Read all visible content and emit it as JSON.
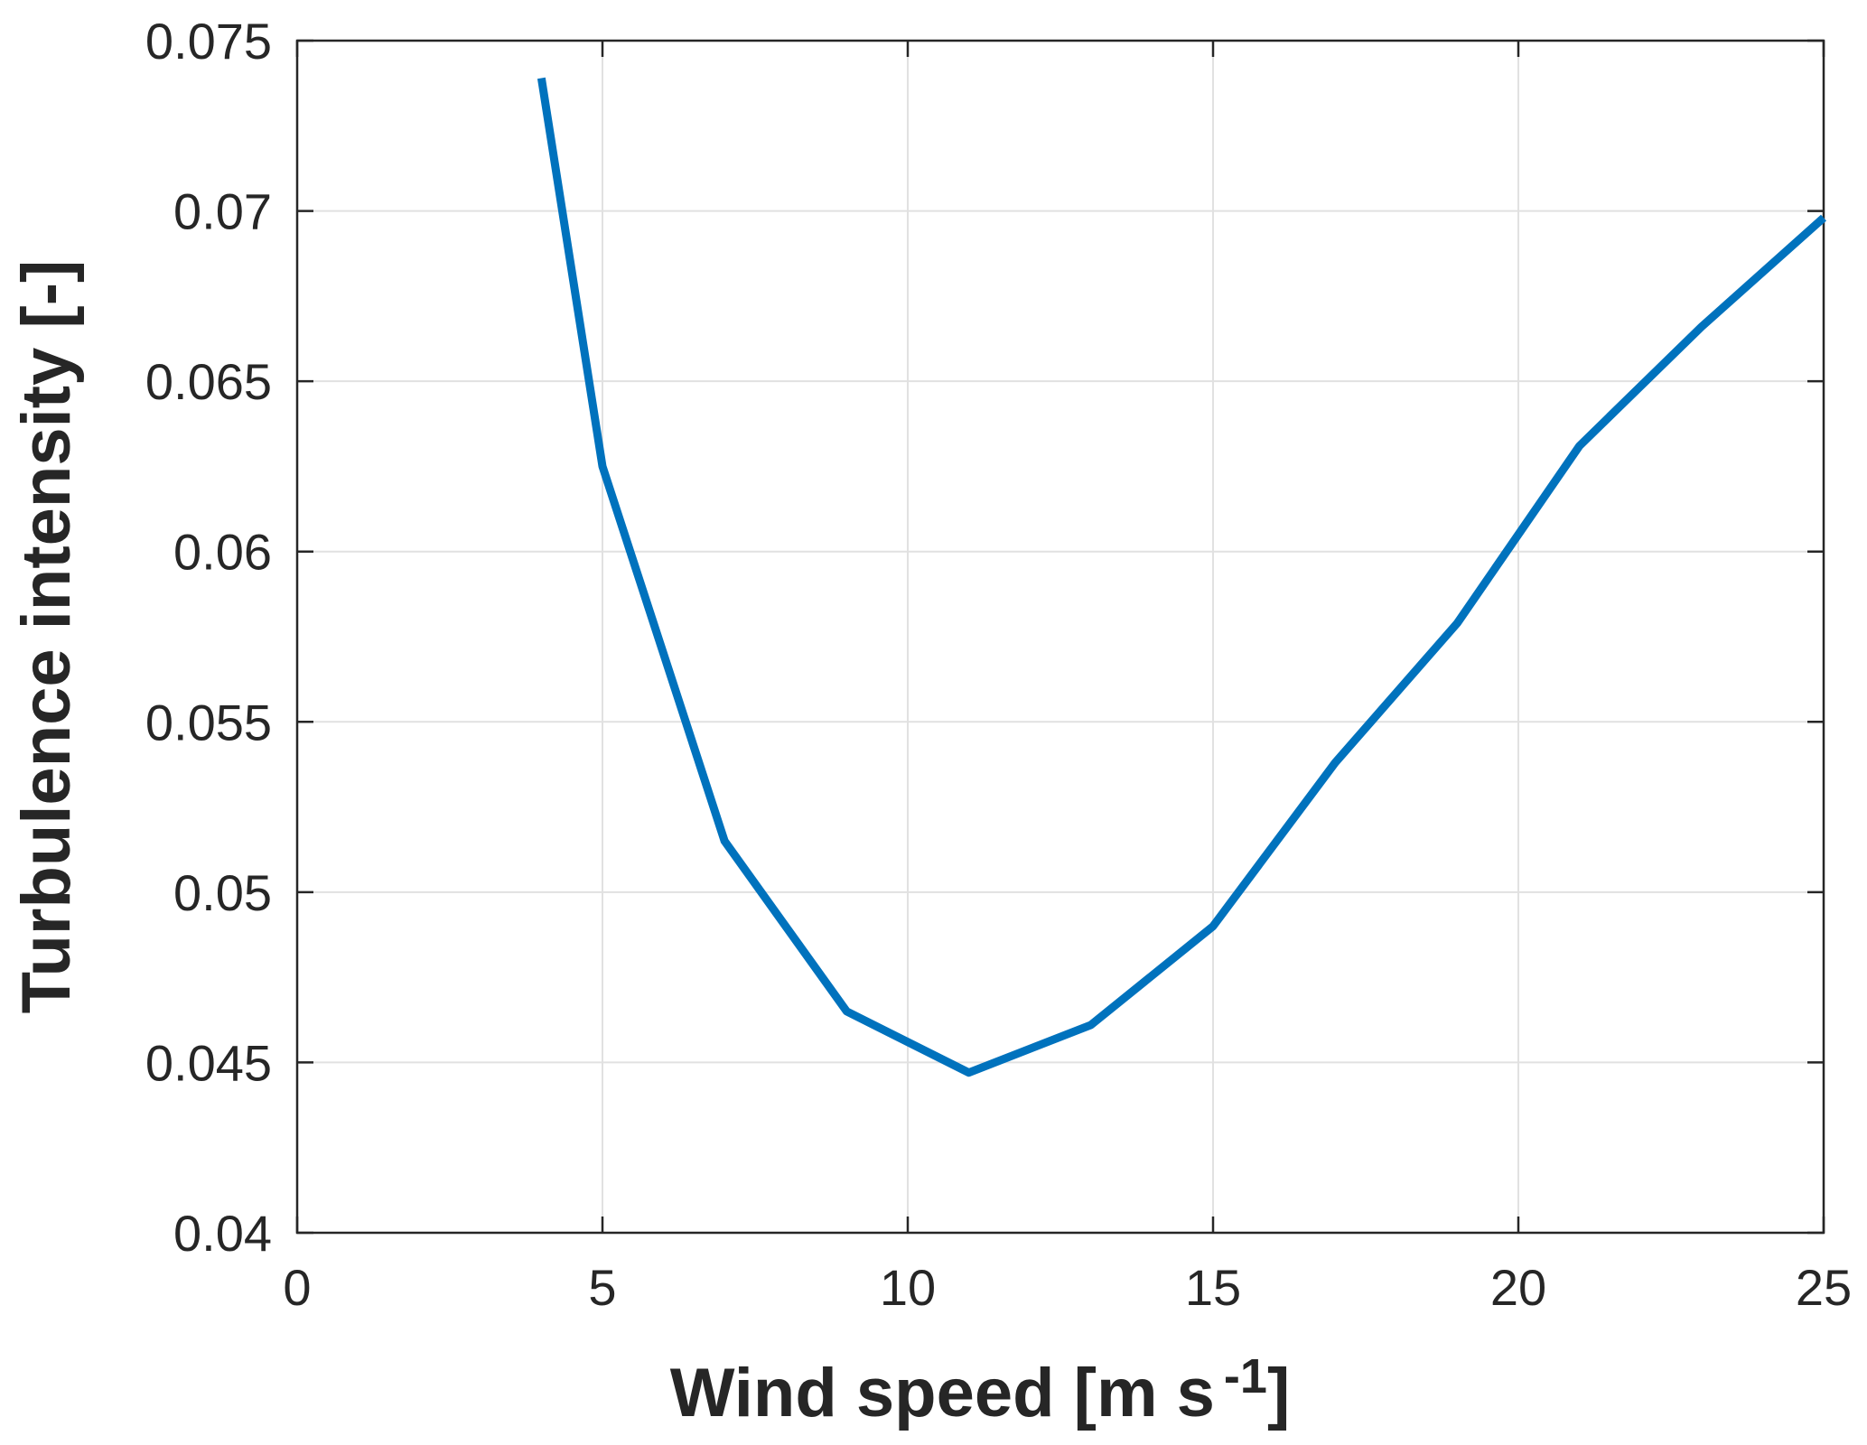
{
  "chart_data": {
    "type": "line",
    "xlabel": "Wind speed [m s",
    "xlabel_sup": "-1",
    "xlabel_end": "]",
    "ylabel": "Turbulence intensity [-]",
    "xlim": [
      0,
      25
    ],
    "ylim": [
      0.04,
      0.075
    ],
    "xticks": [
      "0",
      "5",
      "10",
      "15",
      "20",
      "25"
    ],
    "yticks": [
      "0.04",
      "0.045",
      "0.05",
      "0.055",
      "0.06",
      "0.065",
      "0.07",
      "0.075"
    ],
    "grid": true,
    "series": [
      {
        "color": "#0072BD",
        "x": [
          4,
          5,
          7,
          9,
          11,
          13,
          15,
          17,
          19,
          21,
          23,
          25
        ],
        "y": [
          0.0739,
          0.0625,
          0.0515,
          0.0465,
          0.0447,
          0.0461,
          0.049,
          0.0538,
          0.0579,
          0.0631,
          0.0666,
          0.0698
        ]
      }
    ]
  }
}
